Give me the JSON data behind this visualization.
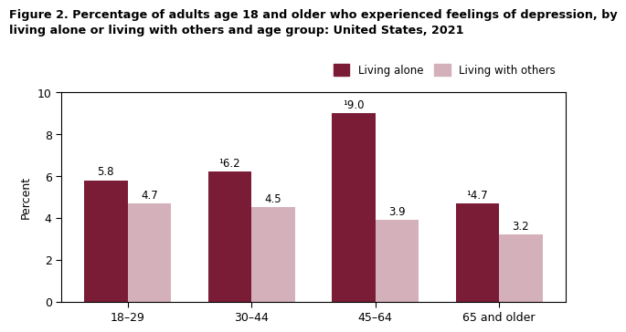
{
  "title_line1": "Figure 2. Percentage of adults age 18 and older who experienced feelings of depression, by",
  "title_line2": "living alone or living with others and age group: United States, 2021",
  "categories": [
    "18–29",
    "30–44",
    "45–64",
    "65 and older"
  ],
  "living_alone": [
    5.8,
    6.2,
    9.0,
    4.7
  ],
  "living_with_others": [
    4.7,
    4.5,
    3.9,
    3.2
  ],
  "living_alone_labels": [
    "5.8",
    "¹6.2",
    "¹9.0",
    "¹4.7"
  ],
  "living_others_labels": [
    "4.7",
    "4.5",
    "3.9",
    "3.2"
  ],
  "color_alone": "#7B1C37",
  "color_others": "#D4B0BB",
  "ylabel": "Percent",
  "ylim": [
    0,
    10
  ],
  "yticks": [
    0,
    2,
    4,
    6,
    8,
    10
  ],
  "legend_alone": "Living alone",
  "legend_others": "Living with others",
  "bar_width": 0.35,
  "background_color": "#ffffff",
  "title_fontsize": 9.2,
  "label_fontsize": 8.5,
  "tick_fontsize": 9,
  "ylabel_fontsize": 9
}
